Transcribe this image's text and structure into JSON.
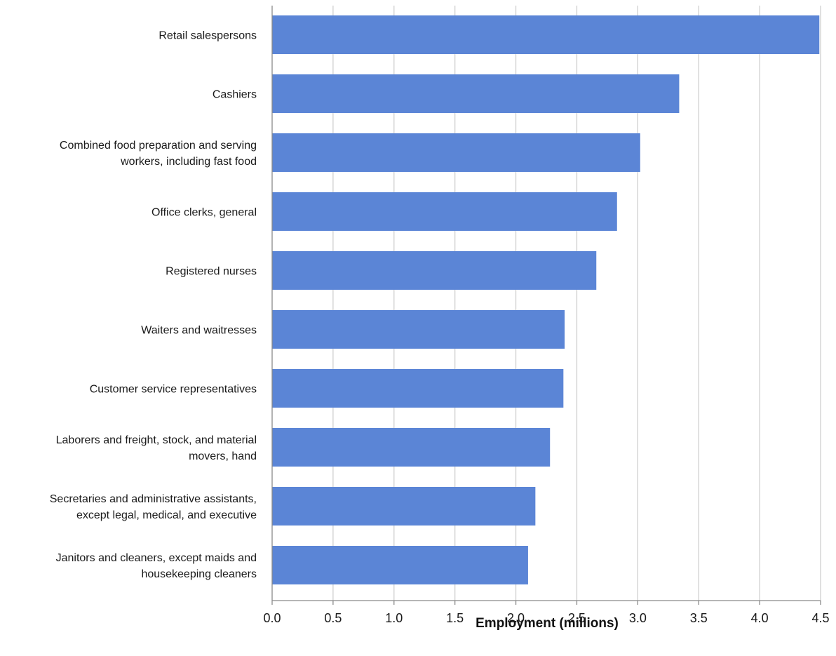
{
  "chart_data": {
    "type": "bar",
    "orientation": "horizontal",
    "categories": [
      "Retail salespersons",
      "Cashiers",
      "Combined food preparation and serving workers, including fast food",
      "Office clerks, general",
      "Registered nurses",
      "Waiters and waitresses",
      "Customer service representatives",
      "Laborers and freight, stock, and material movers, hand",
      "Secretaries and administrative assistants, except legal, medical, and executive",
      "Janitors and cleaners, except maids and housekeeping cleaners"
    ],
    "category_lines": [
      [
        "Retail salespersons"
      ],
      [
        "Cashiers"
      ],
      [
        "Combined food preparation and serving",
        "workers, including fast food"
      ],
      [
        "Office clerks, general"
      ],
      [
        "Registered nurses"
      ],
      [
        "Waiters and waitresses"
      ],
      [
        "Customer service representatives"
      ],
      [
        "Laborers and freight, stock, and material",
        "movers, hand"
      ],
      [
        "Secretaries and administrative assistants,",
        "except legal, medical, and executive"
      ],
      [
        "Janitors and cleaners, except maids and",
        "housekeeping cleaners"
      ]
    ],
    "values": [
      4.49,
      3.34,
      3.02,
      2.83,
      2.66,
      2.4,
      2.39,
      2.28,
      2.16,
      2.1
    ],
    "title": "",
    "xlabel": "Employment (millions)",
    "ylabel": "",
    "xlim": [
      0.0,
      4.5
    ],
    "xticks": [
      "0.0",
      "0.5",
      "1.0",
      "1.5",
      "2.0",
      "2.5",
      "3.0",
      "3.5",
      "4.0",
      "4.5"
    ],
    "grid": true,
    "legend": "none",
    "bar_color": "#5b85d6"
  }
}
